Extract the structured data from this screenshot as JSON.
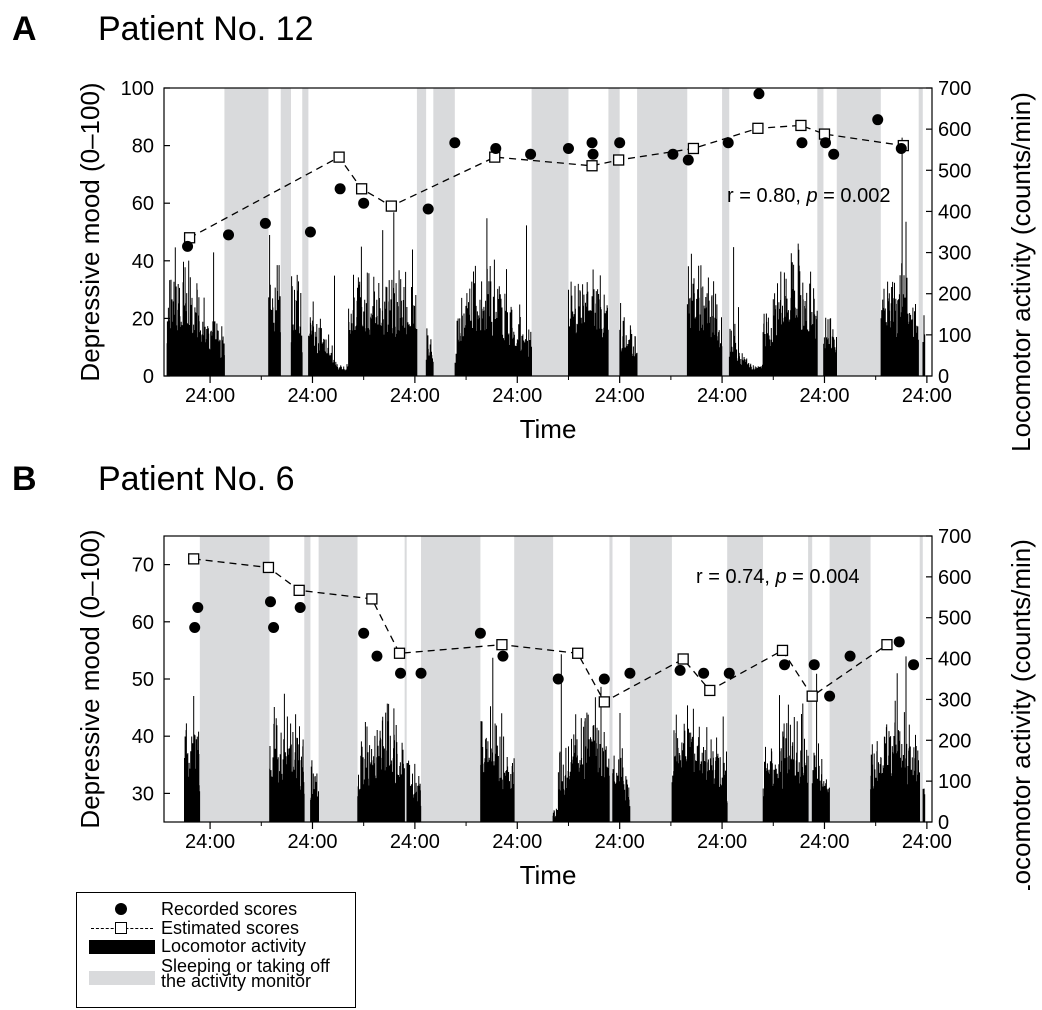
{
  "panels": [
    {
      "letter": "A",
      "title": "Patient No. 12",
      "annotation": "r = 0.80, ",
      "annotation_p": "p",
      "annotation_tail": " = 0.002"
    },
    {
      "letter": "B",
      "title": "Patient No. 6",
      "annotation": "r = 0.74, ",
      "annotation_p": "p",
      "annotation_tail": " = 0.004"
    }
  ],
  "legend": {
    "recorded": "Recorded scores",
    "estimated": "Estimated scores",
    "activity": "Locomotor activity",
    "sleep_line1": "Sleeping or taking off",
    "sleep_line2": "the activity monitor"
  },
  "colors": {
    "activity": "#000000",
    "sleep": "#d9dadc",
    "marker": "#000000"
  },
  "chart_data": [
    {
      "type": "line",
      "title": "Patient No. 12",
      "xlabel": "Time",
      "ylabel": "Depressive mood (0–100)",
      "y2label": "Locomotor activity (counts/min)",
      "x_tick_labels": [
        "24:00",
        "24:00",
        "24:00",
        "24:00",
        "24:00",
        "24:00",
        "24:00",
        "24:00"
      ],
      "x_unit": "days",
      "xlim": [
        -0.45,
        7.05
      ],
      "ylim": [
        0,
        100
      ],
      "yticks": [
        0,
        20,
        40,
        60,
        80,
        100
      ],
      "y2lim": [
        0,
        700
      ],
      "y2ticks": [
        0,
        100,
        200,
        300,
        400,
        500,
        600,
        700
      ],
      "recorded_scores": {
        "x": [
          -0.22,
          0.18,
          0.54,
          0.98,
          1.27,
          1.5,
          2.13,
          2.39,
          2.79,
          3.13,
          3.5,
          3.73,
          3.74,
          4.0,
          4.52,
          4.67,
          5.06,
          5.36,
          5.78,
          6.01,
          6.09,
          6.52,
          6.75
        ],
        "y": [
          45,
          49,
          53,
          50,
          65,
          60,
          58,
          81,
          79,
          77,
          79,
          81,
          77,
          81,
          77,
          75,
          81,
          98,
          81,
          81,
          77,
          89,
          79
        ]
      },
      "estimated_scores": {
        "x": [
          -0.2,
          1.26,
          1.48,
          1.77,
          2.78,
          3.73,
          3.99,
          4.72,
          5.35,
          5.77,
          6.0,
          6.77
        ],
        "y": [
          48,
          76,
          65,
          59,
          76,
          73,
          75,
          79,
          86,
          87,
          84,
          80
        ]
      },
      "sleep_periods": [
        [
          0.14,
          0.57
        ],
        [
          0.69,
          0.79
        ],
        [
          0.9,
          0.96
        ],
        [
          2.02,
          2.11
        ],
        [
          2.18,
          2.39
        ],
        [
          3.14,
          3.5
        ],
        [
          3.89,
          4.0
        ],
        [
          4.17,
          4.66
        ],
        [
          5.0,
          5.07
        ],
        [
          5.93,
          5.99
        ],
        [
          6.12,
          6.55
        ],
        [
          6.92,
          6.96
        ]
      ],
      "annotation": "r = 0.80, p = 0.002"
    },
    {
      "type": "line",
      "title": "Patient No. 6",
      "xlabel": "Time",
      "ylabel": "Depressive mood (0–100)",
      "y2label": "Locomotor activity (counts/min)",
      "x_tick_labels": [
        "24:00",
        "24:00",
        "24:00",
        "24:00",
        "24:00",
        "24:00",
        "24:00",
        "24:00"
      ],
      "x_unit": "days",
      "xlim": [
        -0.45,
        7.05
      ],
      "ylim": [
        25,
        75
      ],
      "yticks": [
        30,
        40,
        50,
        60,
        70
      ],
      "y2lim": [
        0,
        700
      ],
      "y2ticks": [
        0,
        100,
        200,
        300,
        400,
        500,
        600,
        700
      ],
      "recorded_scores": {
        "x": [
          -0.15,
          -0.12,
          0.59,
          0.62,
          0.88,
          1.5,
          1.63,
          1.86,
          2.06,
          2.64,
          2.86,
          3.4,
          3.85,
          4.1,
          4.59,
          4.82,
          5.07,
          5.61,
          5.9,
          6.05,
          6.25,
          6.73,
          6.87
        ],
        "y": [
          59,
          62.5,
          63.5,
          59,
          62.5,
          58,
          54,
          51,
          51,
          58,
          54,
          50,
          50,
          51,
          51.5,
          51,
          51,
          52.5,
          52.5,
          47,
          54,
          56.5,
          52.5
        ]
      },
      "estimated_scores": {
        "x": [
          -0.16,
          0.57,
          0.87,
          1.58,
          1.85,
          2.85,
          3.59,
          3.85,
          4.62,
          4.88,
          5.59,
          5.88,
          6.61
        ],
        "y": [
          71,
          69.5,
          65.5,
          64,
          54.5,
          56,
          54.5,
          46,
          53.5,
          48,
          55,
          47,
          56
        ]
      },
      "sleep_periods": [
        [
          -0.1,
          0.58
        ],
        [
          0.92,
          0.98
        ],
        [
          1.06,
          1.44
        ],
        [
          1.9,
          1.92
        ],
        [
          2.06,
          2.64
        ],
        [
          2.97,
          3.35
        ],
        [
          3.9,
          3.93
        ],
        [
          4.1,
          4.51
        ],
        [
          5.05,
          5.4
        ],
        [
          5.84,
          5.88
        ],
        [
          6.05,
          6.45
        ],
        [
          6.93,
          6.96
        ]
      ],
      "annotation": "r = 0.74, p = 0.004"
    }
  ]
}
